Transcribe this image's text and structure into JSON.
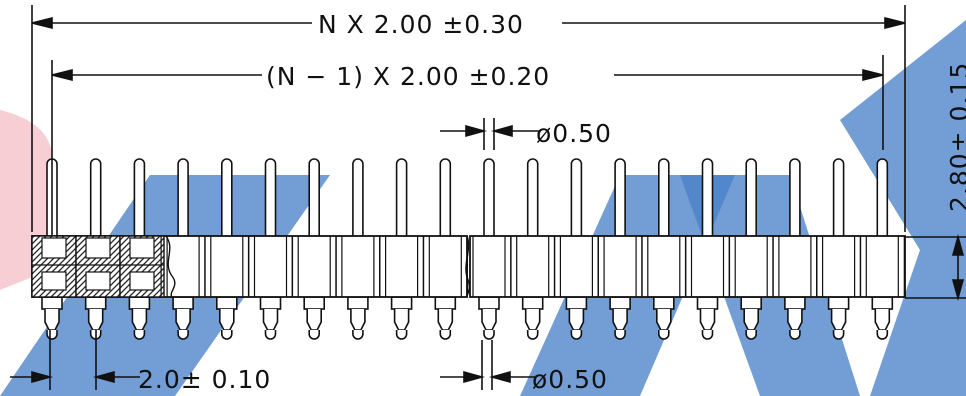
{
  "dimensions": {
    "overall_length": "N X 2.00 ±0.30",
    "pitch_span": "(N − 1) X 2.00 ±0.20",
    "top_pin_diameter": "ø0.50",
    "bottom_pitch": "2.0± 0.10",
    "bottom_pin_diameter": "ø0.50",
    "side_height": "2.80± 0.15"
  },
  "colors": {
    "line": "#111111",
    "watermark_red": "#f5c6cc",
    "watermark_blue": "#3d79c4",
    "hatch": "#222222"
  },
  "watermark": "header-logo"
}
